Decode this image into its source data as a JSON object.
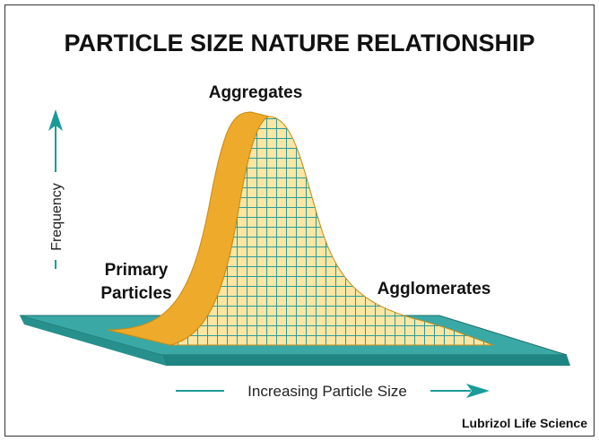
{
  "header": {
    "title": "PARTICLE SIZE NATURE RELATIONSHIP"
  },
  "labels": {
    "aggregates": "Aggregates",
    "primary_particles": [
      "Primary",
      "Particles"
    ],
    "agglomerates": "Agglomerates"
  },
  "axes": {
    "y": "Frequency",
    "x": "Increasing Particle Size"
  },
  "footer": {
    "credit": "Lubrizol Life Science"
  }
}
